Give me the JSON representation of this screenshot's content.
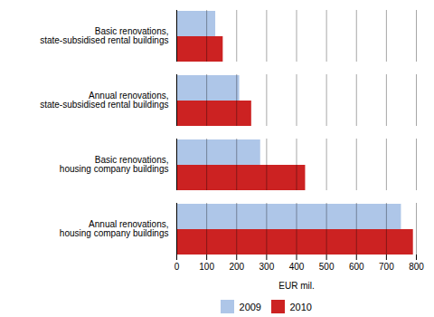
{
  "chart_data": {
    "type": "bar",
    "orientation": "horizontal",
    "categories": [
      "Basic renovations,\nstate-subsidised rental buildings",
      "Annual renovations,\nstate-subsidised rental buildings",
      "Basic renovations,\nhousing company buildings",
      "Annual renovations,\nhousing company buildings"
    ],
    "series": [
      {
        "name": "2009",
        "color": "#aec6e8",
        "values": [
          130,
          210,
          280,
          750
        ]
      },
      {
        "name": "2010",
        "color": "#cc2222",
        "values": [
          155,
          250,
          430,
          790
        ]
      }
    ],
    "xlabel": "EUR mil.",
    "xlim": [
      0,
      800
    ],
    "xticks": [
      0,
      100,
      200,
      300,
      400,
      500,
      600,
      700,
      800
    ],
    "grid": true,
    "legend": "lower center"
  }
}
